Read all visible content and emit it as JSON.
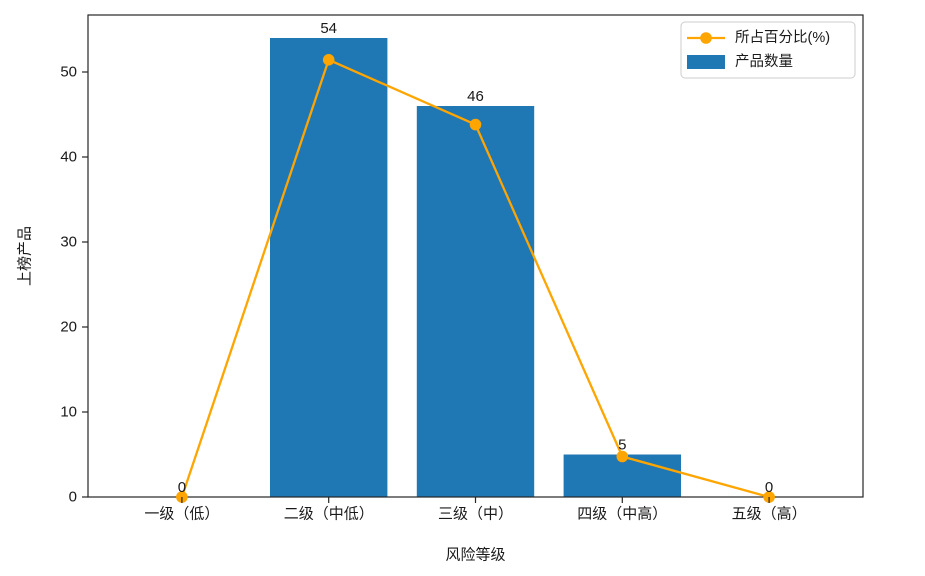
{
  "chart_data": {
    "type": "bar",
    "title": "",
    "categories": [
      "一级（低）",
      "二级（中低）",
      "三级（中）",
      "四级（中高）",
      "五级（高）"
    ],
    "series": [
      {
        "name": "产品数量",
        "type": "bar",
        "color": "#1f77b4",
        "values": [
          0,
          54,
          46,
          5,
          0
        ],
        "data_labels": [
          "0",
          "54",
          "46",
          "5",
          "0"
        ]
      },
      {
        "name": "所占百分比(%)",
        "type": "line",
        "color": "#ffa500",
        "marker": "circle",
        "values": [
          0,
          51.43,
          43.81,
          4.76,
          0
        ]
      }
    ],
    "xlabel": "风险等级",
    "ylabel": "上榜产品",
    "ylim": [
      0,
      56.7
    ],
    "yticks": [
      "0",
      "10",
      "20",
      "30",
      "40",
      "50"
    ],
    "grid": false,
    "legend": {
      "position": "upper-right",
      "entries": [
        {
          "label": "所占百分比(%)",
          "handle": "line-marker",
          "color": "#ffa500"
        },
        {
          "label": "产品数量",
          "handle": "patch",
          "color": "#1f77b4"
        }
      ]
    }
  },
  "colors": {
    "bar": "#1f77b4",
    "line": "#ffa500",
    "axis": "#262626",
    "text": "#1a1a1a",
    "legend_border": "#cccccc",
    "background": "#ffffff"
  }
}
